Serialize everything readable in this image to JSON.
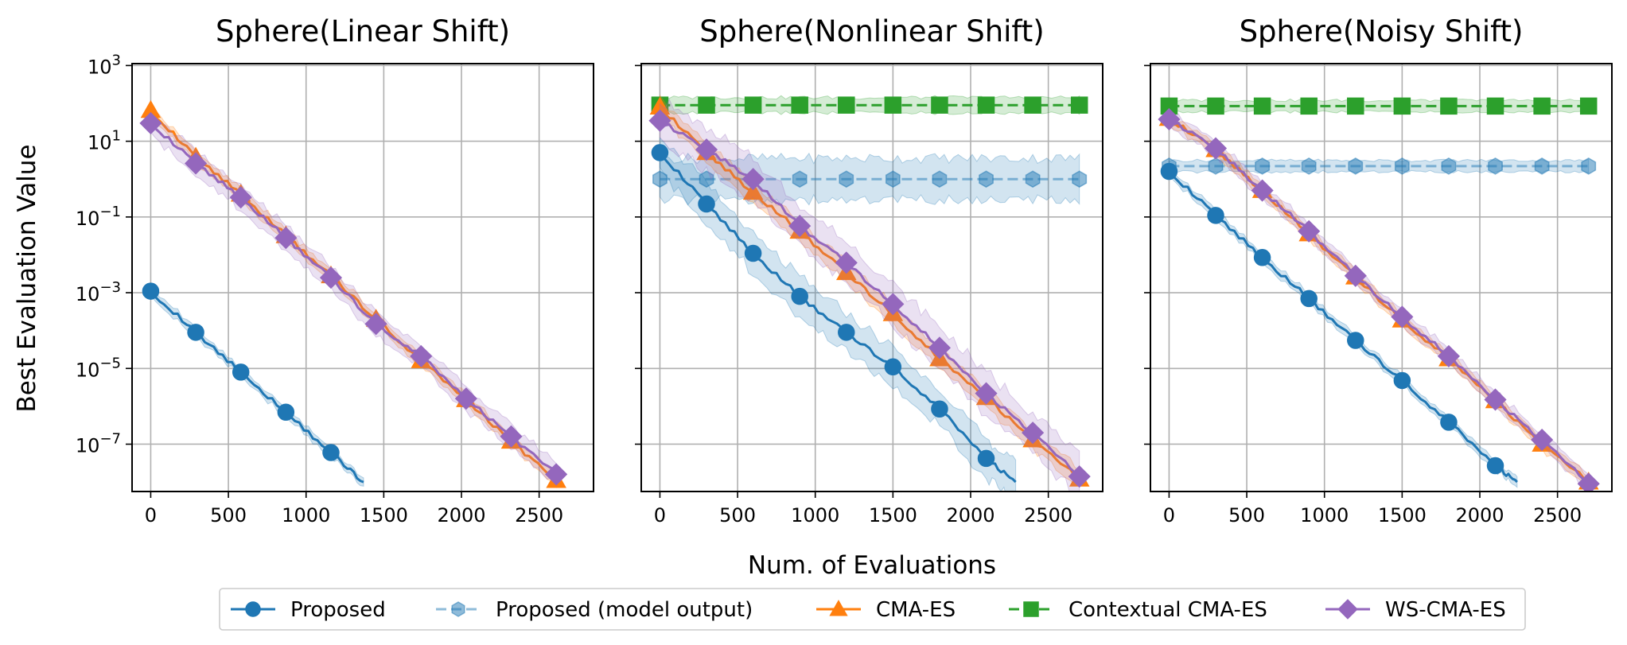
{
  "figure": {
    "ylabel": "Best Evaluation Value",
    "xlabel": "Num. of Evaluations"
  },
  "legend": {
    "items": [
      {
        "label": "Proposed",
        "color": "#1f77b4",
        "marker": "circle",
        "dash": "solid",
        "alpha": 1.0
      },
      {
        "label": "Proposed (model output)",
        "color": "#1f77b4",
        "marker": "hexagon",
        "dash": "dashed",
        "alpha": 0.5
      },
      {
        "label": "CMA-ES",
        "color": "#ff7f0e",
        "marker": "triangle",
        "dash": "solid",
        "alpha": 1.0
      },
      {
        "label": "Contextual CMA-ES",
        "color": "#2ca02c",
        "marker": "square",
        "dash": "dashed",
        "alpha": 1.0
      },
      {
        "label": "WS-CMA-ES",
        "color": "#9467bd",
        "marker": "diamond",
        "dash": "solid",
        "alpha": 1.0
      }
    ]
  },
  "chart_data": [
    {
      "type": "line",
      "title": "Sphere(Linear Shift)",
      "xlabel": "Num. of Evaluations",
      "ylabel": "Best Evaluation Value",
      "xticks": [
        0,
        500,
        1000,
        1500,
        2000,
        2500
      ],
      "yticks": [
        "10^3",
        "10^1",
        "10^-1",
        "10^-3",
        "10^-5",
        "10^-7"
      ],
      "ylog10_range": [
        -8.25,
        3.05
      ],
      "xlim": [
        -120,
        2850
      ],
      "grid": true,
      "series": [
        {
          "name": "Proposed",
          "x": [
            0,
            290,
            580,
            870,
            1160,
            1370
          ],
          "y": [
            0.0011,
            9e-05,
            8e-06,
            7e-07,
            6e-08,
            1e-08
          ],
          "band": 0.12
        },
        {
          "name": "CMA-ES",
          "x": [
            0,
            290,
            580,
            870,
            1160,
            1450,
            1740,
            2030,
            2320,
            2610
          ],
          "y": [
            65,
            3.8,
            0.4,
            0.032,
            0.0028,
            0.0002,
            1.6e-05,
            1.5e-06,
            1.2e-07,
            1.1e-08
          ],
          "band": 0.15
        },
        {
          "name": "WS-CMA-ES",
          "x": [
            0,
            290,
            580,
            870,
            1160,
            1450,
            1740,
            2030,
            2320,
            2610
          ],
          "y": [
            30,
            2.6,
            0.33,
            0.028,
            0.0025,
            0.00015,
            2.1e-05,
            1.6e-06,
            1.6e-07,
            1.6e-08
          ],
          "band": 0.3
        }
      ]
    },
    {
      "type": "line",
      "title": "Sphere(Nonlinear Shift)",
      "xlabel": "Num. of Evaluations",
      "xticks": [
        0,
        500,
        1000,
        1500,
        2000,
        2500
      ],
      "ylog10_range": [
        -8.25,
        3.05
      ],
      "xlim": [
        -120,
        2850
      ],
      "grid": true,
      "series": [
        {
          "name": "Contextual CMA-ES",
          "x": [
            0,
            300,
            600,
            900,
            1200,
            1500,
            1800,
            2100,
            2400,
            2700
          ],
          "y": [
            90,
            90,
            90,
            90,
            90,
            90,
            90,
            90,
            90,
            90
          ],
          "band": 0.2
        },
        {
          "name": "Proposed (model output)",
          "x": [
            0,
            300,
            600,
            900,
            1200,
            1500,
            1800,
            2100,
            2400,
            2700
          ],
          "y": [
            1.0,
            1.0,
            1.0,
            1.0,
            1.0,
            1.0,
            1.0,
            1.0,
            1.0,
            1.0
          ],
          "band": 0.55
        },
        {
          "name": "Proposed",
          "x": [
            0,
            300,
            600,
            900,
            1200,
            1500,
            1800,
            2100,
            2290
          ],
          "y": [
            5.0,
            0.22,
            0.011,
            0.0008,
            9e-05,
            1.1e-05,
            8.5e-07,
            4.2e-08,
            1e-08
          ],
          "band": 0.5
        },
        {
          "name": "CMA-ES",
          "x": [
            0,
            300,
            600,
            900,
            1200,
            1500,
            1800,
            2100,
            2400,
            2700
          ],
          "y": [
            80,
            5.0,
            0.45,
            0.042,
            0.0034,
            0.00028,
            1.8e-05,
            1.7e-06,
            1.3e-07,
            1.2e-08
          ],
          "band": 0.25
        },
        {
          "name": "WS-CMA-ES",
          "x": [
            0,
            300,
            600,
            900,
            1200,
            1500,
            1800,
            2100,
            2400,
            2700
          ],
          "y": [
            35,
            6.0,
            1.0,
            0.058,
            0.0062,
            0.0005,
            3.5e-05,
            2.2e-06,
            2e-07,
            1.4e-08
          ],
          "band": 0.55
        }
      ]
    },
    {
      "type": "line",
      "title": "Sphere(Noisy Shift)",
      "xlabel": "Num. of Evaluations",
      "xticks": [
        0,
        500,
        1000,
        1500,
        2000,
        2500
      ],
      "ylog10_range": [
        -8.25,
        3.05
      ],
      "xlim": [
        -120,
        2850
      ],
      "grid": true,
      "series": [
        {
          "name": "Contextual CMA-ES",
          "x": [
            0,
            300,
            600,
            900,
            1200,
            1500,
            1800,
            2100,
            2400,
            2700
          ],
          "y": [
            85,
            85,
            85,
            85,
            85,
            85,
            85,
            85,
            85,
            85
          ],
          "band": 0.15
        },
        {
          "name": "Proposed (model output)",
          "x": [
            0,
            300,
            600,
            900,
            1200,
            1500,
            1800,
            2100,
            2400,
            2700
          ],
          "y": [
            2.2,
            2.2,
            2.2,
            2.2,
            2.2,
            2.2,
            2.2,
            2.2,
            2.2,
            2.2
          ],
          "band": 0.15
        },
        {
          "name": "Proposed",
          "x": [
            0,
            300,
            600,
            900,
            1200,
            1500,
            1800,
            2100,
            2240
          ],
          "y": [
            1.6,
            0.11,
            0.0085,
            0.0007,
            5.5e-05,
            4.8e-06,
            3.8e-07,
            2.7e-08,
            1e-08
          ],
          "band": 0.12
        },
        {
          "name": "CMA-ES",
          "x": [
            0,
            300,
            600,
            900,
            1200,
            1500,
            1800,
            2100,
            2400,
            2700
          ],
          "y": [
            40,
            6.0,
            0.5,
            0.036,
            0.0026,
            0.00019,
            1.8e-05,
            1.4e-06,
            1e-07,
            1e-08
          ],
          "band": 0.15
        },
        {
          "name": "WS-CMA-ES",
          "x": [
            0,
            300,
            600,
            900,
            1200,
            1500,
            1800,
            2100,
            2400,
            2700
          ],
          "y": [
            38,
            6.5,
            0.5,
            0.042,
            0.0028,
            0.00023,
            2.1e-05,
            1.5e-06,
            1.3e-07,
            9e-09
          ],
          "band": 0.2
        }
      ]
    }
  ]
}
